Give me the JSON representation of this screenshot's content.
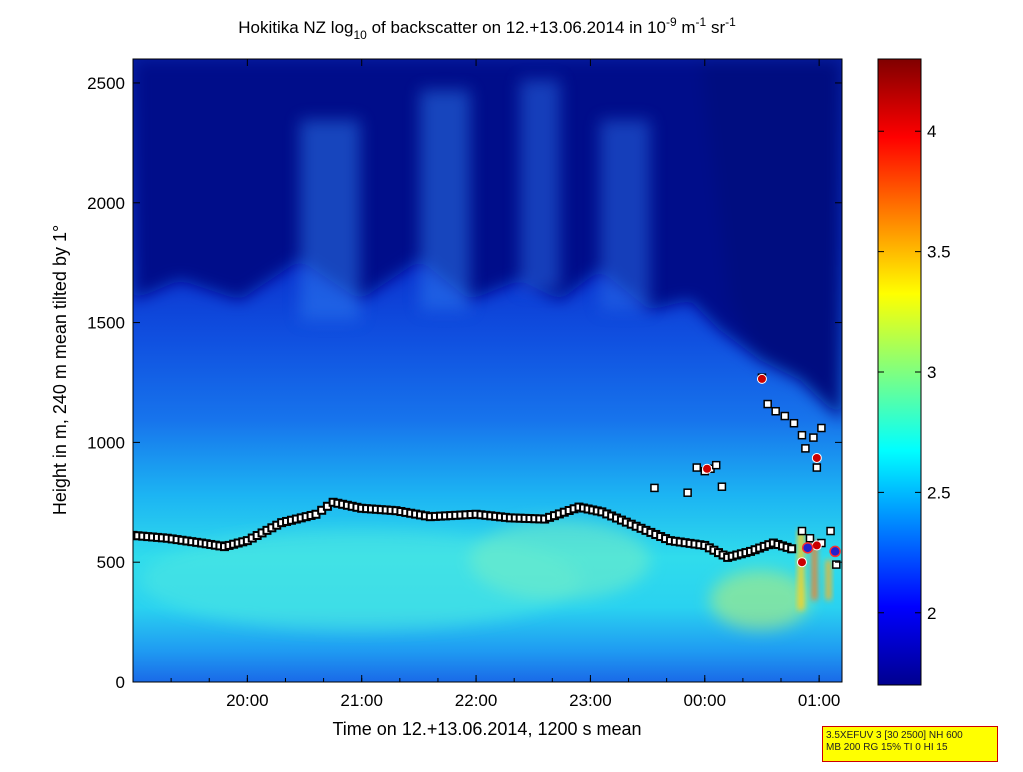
{
  "chart_data": {
    "type": "heatmap",
    "title": {
      "prefix": "Hokitika NZ log",
      "sub": "10",
      "mid": " of backscatter on 12.+13.06.2014 in 10",
      "sup1": "-9",
      "unit1": " m",
      "sup2": "-1",
      "unit2": " sr",
      "sup3": "-1"
    },
    "xlabel": "Time on 12.+13.06.2014, 1200 s mean",
    "ylabel": "Height in m, 240 m mean tilted by 1°",
    "x_ticks": [
      "20:00",
      "21:00",
      "22:00",
      "23:00",
      "00:00",
      "01:00"
    ],
    "x_tick_hours": [
      20,
      21,
      22,
      23,
      24,
      25
    ],
    "x_range_hours": [
      19.0,
      25.2
    ],
    "y_ticks": [
      "0",
      "500",
      "1000",
      "1500",
      "2000",
      "2500"
    ],
    "y_tick_values": [
      0,
      500,
      1000,
      1500,
      2000,
      2500
    ],
    "y_range": [
      0,
      2600
    ],
    "colorbar": {
      "range": [
        1.7,
        4.3
      ],
      "ticks": [
        "2",
        "2.5",
        "3",
        "3.5",
        "4"
      ],
      "tick_values": [
        2,
        2.5,
        3,
        3.5,
        4
      ],
      "colormap": "jet"
    },
    "layer_height": {
      "hours": [
        19.0,
        19.3,
        19.6,
        19.8,
        20.0,
        20.3,
        20.6,
        20.75,
        21.0,
        21.3,
        21.6,
        22.0,
        22.3,
        22.6,
        22.9,
        23.1,
        23.4,
        23.7,
        24.0,
        24.2,
        24.4,
        24.6,
        24.8
      ],
      "heights": [
        612,
        600,
        580,
        565,
        590,
        665,
        700,
        750,
        725,
        715,
        690,
        700,
        685,
        680,
        730,
        710,
        650,
        590,
        570,
        520,
        545,
        580,
        550
      ]
    },
    "cloud_points": [
      {
        "hour": 23.56,
        "height": 810
      },
      {
        "hour": 23.85,
        "height": 790
      },
      {
        "hour": 23.93,
        "height": 895
      },
      {
        "hour": 24.0,
        "height": 880
      },
      {
        "hour": 24.05,
        "height": 890
      },
      {
        "hour": 24.1,
        "height": 905
      },
      {
        "hour": 24.15,
        "height": 815
      },
      {
        "hour": 24.5,
        "height": 1270
      },
      {
        "hour": 24.55,
        "height": 1160
      },
      {
        "hour": 24.62,
        "height": 1130
      },
      {
        "hour": 24.7,
        "height": 1110
      },
      {
        "hour": 24.78,
        "height": 1080
      },
      {
        "hour": 24.85,
        "height": 1030
      },
      {
        "hour": 24.88,
        "height": 975
      },
      {
        "hour": 24.95,
        "height": 1020
      },
      {
        "hour": 25.02,
        "height": 1060
      },
      {
        "hour": 24.98,
        "height": 895
      },
      {
        "hour": 24.85,
        "height": 630
      },
      {
        "hour": 24.92,
        "height": 600
      },
      {
        "hour": 25.02,
        "height": 580
      },
      {
        "hour": 25.1,
        "height": 630
      },
      {
        "hour": 25.15,
        "height": 490
      }
    ],
    "red_points": [
      {
        "hour": 24.02,
        "height": 890
      },
      {
        "hour": 24.5,
        "height": 1265
      },
      {
        "hour": 24.98,
        "height": 935
      },
      {
        "hour": 24.85,
        "height": 500
      },
      {
        "hour": 24.98,
        "height": 570
      }
    ],
    "blue_points": [
      {
        "hour": 24.9,
        "height": 560
      },
      {
        "hour": 25.14,
        "height": 545
      }
    ]
  },
  "info_box": {
    "line1": "3.5XEFUV 3 [30 2500] NH 600",
    "line2": "MB 200 RG 15% TI 0 HI 15"
  },
  "colors": {
    "background": "#ffffff",
    "marker_black": "#000000",
    "marker_white": "#ffffff",
    "marker_red": "#cc0000",
    "marker_blue": "#2222cc",
    "info_box_fill": "#ffff00",
    "info_box_border": "#cc0000"
  }
}
